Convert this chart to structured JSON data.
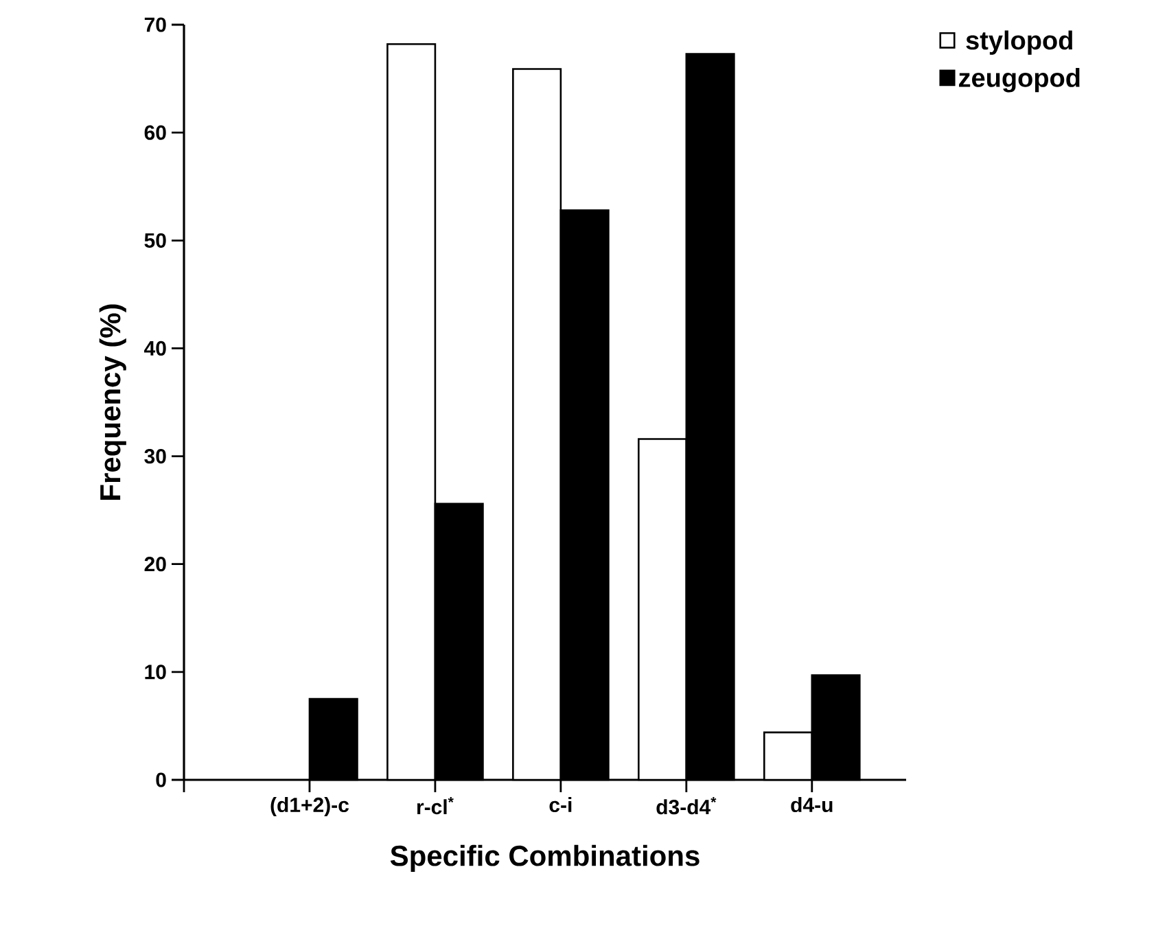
{
  "chart_data": {
    "type": "bar",
    "xlabel": "Specific Combinations",
    "ylabel": "Frequency (%)",
    "categories": [
      "(d1+2)-c",
      "r-cl$^{*}$",
      "c-i",
      "d3-d4$^{*}$",
      "d4-u"
    ],
    "series": [
      {
        "name": "stylopod",
        "color": "#ffffff",
        "values": [
          null,
          68.2,
          65.9,
          31.6,
          4.4
        ]
      },
      {
        "name": "zeugopod",
        "color": "#000000",
        "values": [
          7.5,
          25.6,
          52.8,
          67.3,
          9.7
        ]
      }
    ],
    "ylim": [
      0,
      70
    ],
    "yticks": [
      0,
      10,
      20,
      30,
      40,
      50,
      60,
      70
    ],
    "grid": false,
    "legend": "top right"
  }
}
